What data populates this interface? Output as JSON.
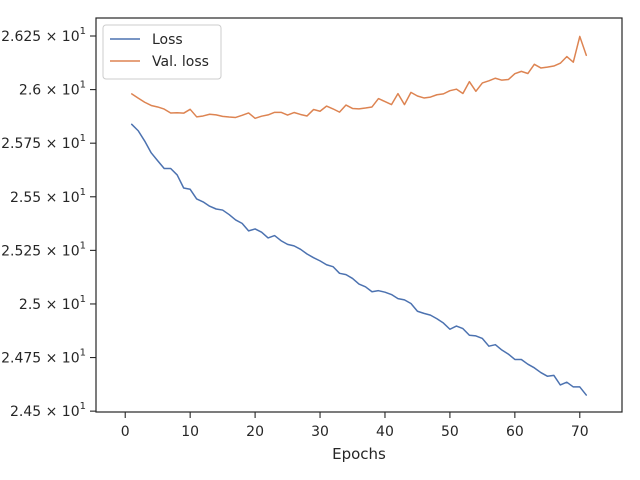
{
  "chart_data": {
    "type": "line",
    "title": "",
    "xlabel": "Epochs",
    "ylabel": "",
    "xlim": [
      -4.5,
      76.5
    ],
    "ylim": [
      24.496,
      26.334
    ],
    "grid": false,
    "legend_position": "top-left",
    "x_ticks": [
      0,
      10,
      20,
      30,
      40,
      50,
      60,
      70
    ],
    "x_tick_labels": [
      "0",
      "10",
      "20",
      "30",
      "40",
      "50",
      "60",
      "70"
    ],
    "y_ticks": [
      24.5,
      24.75,
      25.0,
      25.25,
      25.5,
      25.75,
      26.0,
      26.25
    ],
    "y_tick_labels": [
      {
        "mantissa": "2.45",
        "exponent": "1"
      },
      {
        "mantissa": "2.475",
        "exponent": "1"
      },
      {
        "mantissa": "2.5",
        "exponent": "1"
      },
      {
        "mantissa": "2.525",
        "exponent": "1"
      },
      {
        "mantissa": "2.55",
        "exponent": "1"
      },
      {
        "mantissa": "2.575",
        "exponent": "1"
      },
      {
        "mantissa": "2.6",
        "exponent": "1"
      },
      {
        "mantissa": "2.625",
        "exponent": "1"
      }
    ],
    "x": [
      1,
      2,
      3,
      4,
      5,
      6,
      7,
      8,
      9,
      10,
      11,
      12,
      13,
      14,
      15,
      16,
      17,
      18,
      19,
      20,
      21,
      22,
      23,
      24,
      25,
      26,
      27,
      28,
      29,
      30,
      31,
      32,
      33,
      34,
      35,
      36,
      37,
      38,
      39,
      40,
      41,
      42,
      43,
      44,
      45,
      46,
      47,
      48,
      49,
      50,
      51,
      52,
      53,
      54,
      55,
      56,
      57,
      58,
      59,
      60,
      61,
      62,
      63,
      64,
      65,
      66,
      67,
      68,
      69,
      70,
      71
    ],
    "series": [
      {
        "name": "Loss",
        "color": "#4c72b0",
        "values": [
          25.838,
          25.808,
          25.76,
          25.705,
          25.668,
          25.632,
          25.632,
          25.602,
          25.541,
          25.535,
          25.49,
          25.476,
          25.456,
          25.443,
          25.438,
          25.417,
          25.392,
          25.376,
          25.341,
          25.35,
          25.335,
          25.308,
          25.319,
          25.295,
          25.278,
          25.271,
          25.255,
          25.233,
          25.216,
          25.201,
          25.183,
          25.174,
          25.143,
          25.137,
          25.119,
          25.093,
          25.08,
          25.057,
          25.062,
          25.055,
          25.044,
          25.025,
          25.019,
          25.002,
          24.966,
          24.956,
          24.948,
          24.931,
          24.911,
          24.882,
          24.897,
          24.885,
          24.854,
          24.851,
          24.839,
          24.803,
          24.81,
          24.785,
          24.766,
          24.741,
          24.741,
          24.719,
          24.702,
          24.68,
          24.663,
          24.667,
          24.622,
          24.635,
          24.613,
          24.613,
          24.575
        ]
      },
      {
        "name": "Val. loss",
        "color": "#dd8452",
        "values": [
          25.98,
          25.96,
          25.941,
          25.926,
          25.919,
          25.909,
          25.891,
          25.892,
          25.89,
          25.908,
          25.873,
          25.877,
          25.885,
          25.882,
          25.875,
          25.872,
          25.87,
          25.88,
          25.891,
          25.866,
          25.876,
          25.882,
          25.894,
          25.894,
          25.881,
          25.893,
          25.884,
          25.877,
          25.907,
          25.899,
          25.923,
          25.91,
          25.895,
          25.928,
          25.912,
          25.91,
          25.914,
          25.919,
          25.958,
          25.944,
          25.93,
          25.981,
          25.93,
          25.987,
          25.97,
          25.961,
          25.965,
          25.976,
          25.98,
          25.995,
          26.002,
          25.982,
          26.037,
          25.992,
          26.031,
          26.041,
          26.053,
          26.044,
          26.047,
          26.074,
          26.085,
          26.075,
          26.118,
          26.101,
          26.105,
          26.11,
          26.123,
          26.154,
          26.128,
          26.248,
          26.16
        ]
      }
    ]
  }
}
